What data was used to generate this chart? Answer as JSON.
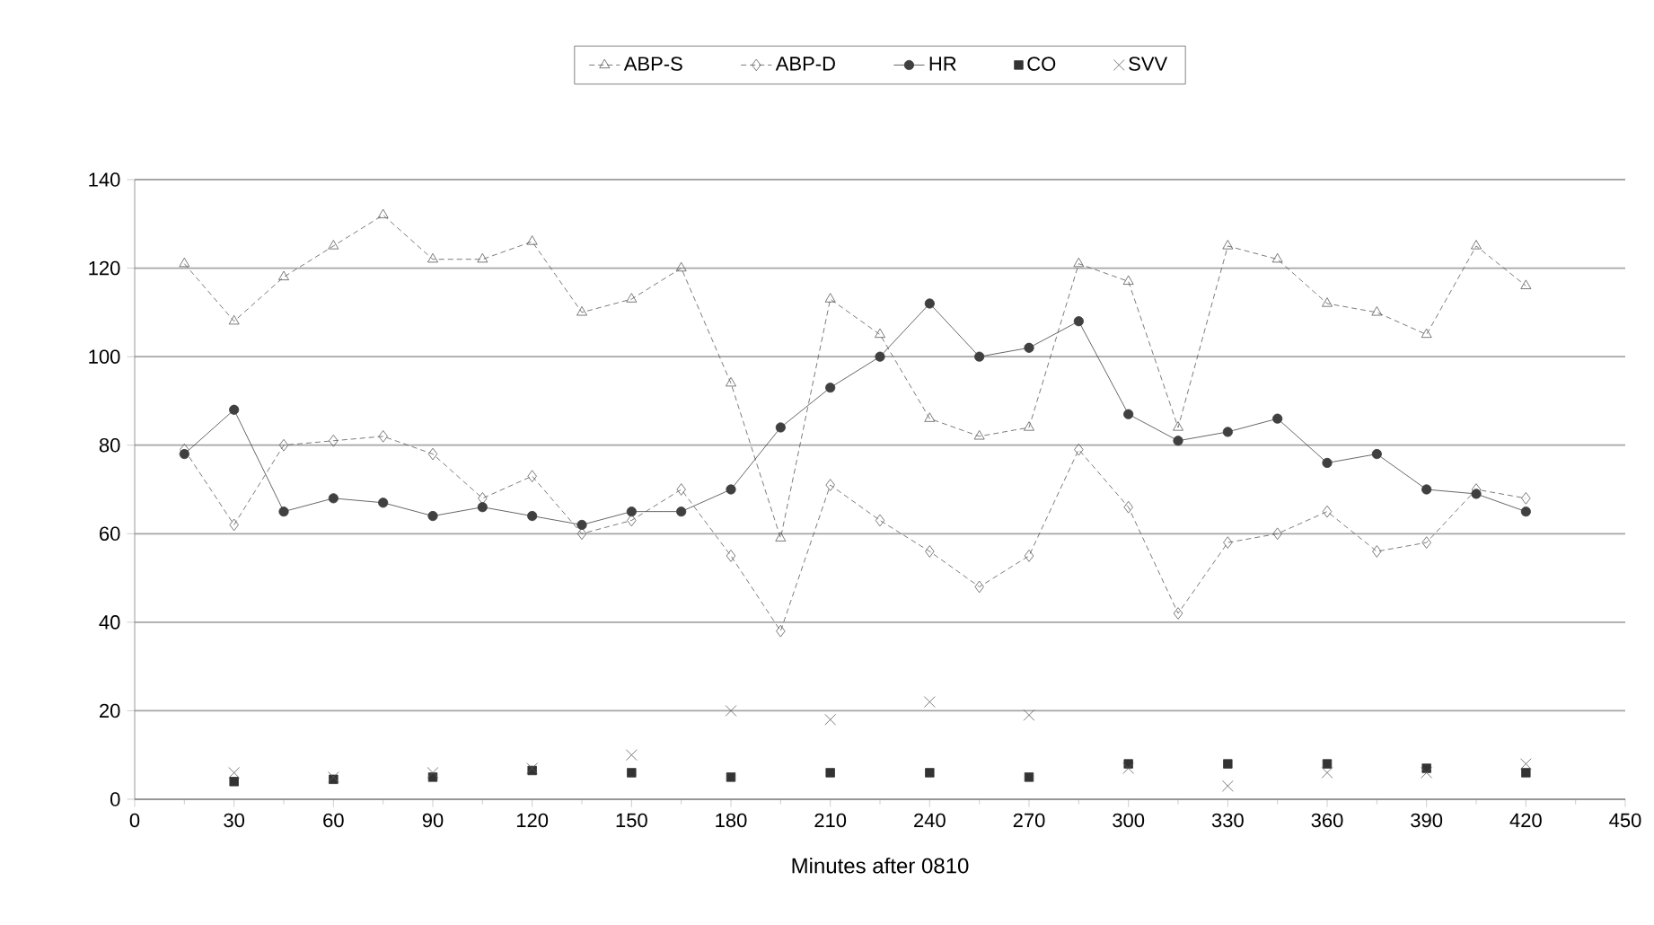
{
  "chart_data": {
    "type": "line",
    "xlabel": "Minutes after 0810",
    "xlim": [
      0,
      450
    ],
    "xticks": [
      0,
      30,
      60,
      90,
      120,
      150,
      180,
      210,
      240,
      270,
      300,
      330,
      360,
      390,
      420,
      450
    ],
    "ylim": [
      0,
      140
    ],
    "yticks": [
      0,
      20,
      40,
      60,
      80,
      100,
      120,
      140
    ],
    "grid": "y",
    "legend": "top",
    "series": [
      {
        "name": "ABP-S",
        "color": "#595959",
        "marker": "triangle",
        "line_style": "dashed",
        "x": [
          15,
          30,
          45,
          60,
          75,
          90,
          105,
          120,
          135,
          150,
          165,
          180,
          195,
          210,
          225,
          240,
          255,
          270,
          285,
          300,
          315,
          330,
          345,
          360,
          375,
          390,
          405,
          420
        ],
        "values": [
          121,
          108,
          118,
          125,
          132,
          122,
          122,
          126,
          110,
          113,
          120,
          94,
          59,
          113,
          105,
          86,
          82,
          84,
          121,
          117,
          84,
          125,
          122,
          112,
          110,
          105,
          125,
          116
        ]
      },
      {
        "name": "ABP-D",
        "color": "#595959",
        "marker": "diamond",
        "line_style": "dashed",
        "x": [
          15,
          30,
          45,
          60,
          75,
          90,
          105,
          120,
          135,
          150,
          165,
          180,
          195,
          210,
          225,
          240,
          255,
          270,
          285,
          300,
          315,
          330,
          345,
          360,
          375,
          390,
          405,
          420
        ],
        "values": [
          79,
          62,
          80,
          81,
          82,
          78,
          68,
          73,
          60,
          63,
          70,
          55,
          38,
          71,
          63,
          56,
          48,
          55,
          79,
          66,
          42,
          58,
          60,
          65,
          56,
          58,
          70,
          68
        ]
      },
      {
        "name": "HR",
        "color": "#404040",
        "marker": "circle",
        "line_style": "solid",
        "x": [
          15,
          30,
          45,
          60,
          75,
          90,
          105,
          120,
          135,
          150,
          165,
          180,
          195,
          210,
          225,
          240,
          255,
          270,
          285,
          300,
          315,
          330,
          345,
          360,
          375,
          390,
          405,
          420
        ],
        "values": [
          78,
          88,
          65,
          68,
          67,
          64,
          66,
          64,
          62,
          65,
          65,
          70,
          84,
          93,
          100,
          112,
          100,
          102,
          108,
          87,
          81,
          83,
          86,
          76,
          78,
          70,
          69,
          65
        ]
      },
      {
        "name": "CO",
        "type": "scatter",
        "color": "#333333",
        "marker": "square",
        "x": [
          30,
          60,
          90,
          120,
          150,
          180,
          210,
          240,
          270,
          300,
          330,
          360,
          390,
          420
        ],
        "values": [
          4,
          4.5,
          5,
          6.5,
          6,
          5,
          6,
          6,
          5,
          8,
          8,
          8,
          7,
          6
        ]
      },
      {
        "name": "SVV",
        "type": "scatter",
        "color": "#595959",
        "marker": "cross",
        "x": [
          30,
          60,
          90,
          120,
          150,
          180,
          210,
          240,
          270,
          300,
          330,
          360,
          390,
          420
        ],
        "values": [
          6,
          5,
          6,
          7,
          10,
          20,
          18,
          22,
          19,
          7,
          3,
          6,
          6,
          8
        ]
      }
    ]
  }
}
